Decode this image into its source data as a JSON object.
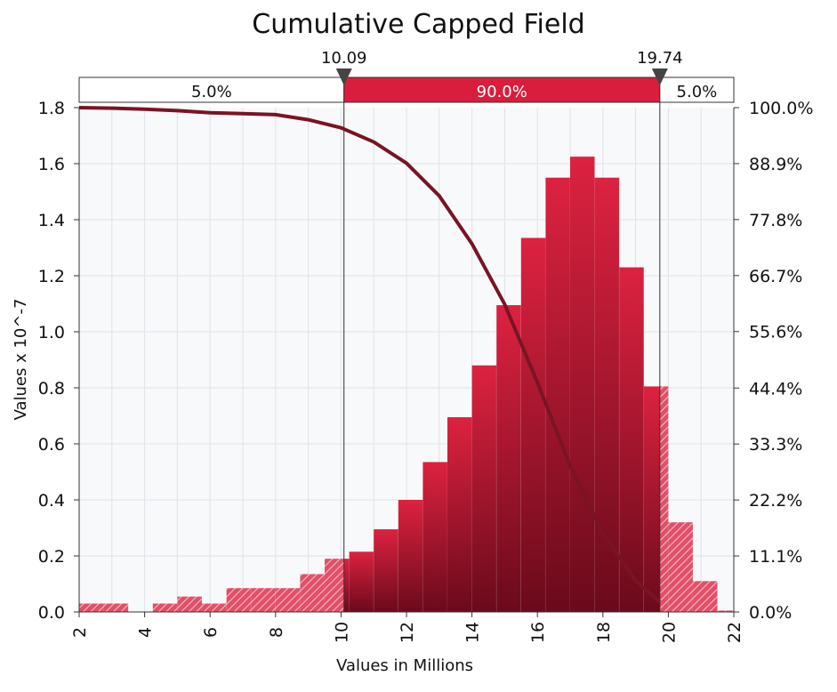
{
  "chart_data": {
    "type": "bar",
    "title": "Cumulative Capped Field",
    "xlabel": "Values in Millions",
    "ylabel": "Values x 10^-7",
    "xlim": [
      2,
      22
    ],
    "ylim": [
      0,
      1.8
    ],
    "y2lim": [
      0,
      100
    ],
    "x_ticks": [
      "2",
      "4",
      "6",
      "8",
      "10",
      "12",
      "14",
      "16",
      "18",
      "20",
      "22"
    ],
    "y_ticks": [
      "0.0",
      "0.2",
      "0.4",
      "0.6",
      "0.8",
      "1.0",
      "1.2",
      "1.4",
      "1.6",
      "1.8"
    ],
    "y2_ticks": [
      "0.0%",
      "11.1%",
      "22.2%",
      "33.3%",
      "44.4%",
      "55.6%",
      "66.7%",
      "77.8%",
      "88.9%",
      "100.0%"
    ],
    "grid": true,
    "bins": [
      {
        "x0": 2.0,
        "x1": 2.75,
        "value": 0.03
      },
      {
        "x0": 2.75,
        "x1": 3.5,
        "value": 0.03
      },
      {
        "x0": 3.5,
        "x1": 4.25,
        "value": 0.0
      },
      {
        "x0": 4.25,
        "x1": 5.0,
        "value": 0.03
      },
      {
        "x0": 5.0,
        "x1": 5.75,
        "value": 0.055
      },
      {
        "x0": 5.75,
        "x1": 6.5,
        "value": 0.03
      },
      {
        "x0": 6.5,
        "x1": 7.25,
        "value": 0.085
      },
      {
        "x0": 7.25,
        "x1": 8.0,
        "value": 0.085
      },
      {
        "x0": 8.0,
        "x1": 8.75,
        "value": 0.085
      },
      {
        "x0": 8.75,
        "x1": 9.5,
        "value": 0.135
      },
      {
        "x0": 9.5,
        "x1": 10.25,
        "value": 0.19
      },
      {
        "x0": 10.25,
        "x1": 11.0,
        "value": 0.215
      },
      {
        "x0": 11.0,
        "x1": 11.75,
        "value": 0.295
      },
      {
        "x0": 11.75,
        "x1": 12.5,
        "value": 0.4
      },
      {
        "x0": 12.5,
        "x1": 13.25,
        "value": 0.535
      },
      {
        "x0": 13.25,
        "x1": 14.0,
        "value": 0.695
      },
      {
        "x0": 14.0,
        "x1": 14.75,
        "value": 0.88
      },
      {
        "x0": 14.75,
        "x1": 15.5,
        "value": 1.095
      },
      {
        "x0": 15.5,
        "x1": 16.25,
        "value": 1.335
      },
      {
        "x0": 16.25,
        "x1": 17.0,
        "value": 1.55
      },
      {
        "x0": 17.0,
        "x1": 17.75,
        "value": 1.625
      },
      {
        "x0": 17.75,
        "x1": 18.5,
        "value": 1.55
      },
      {
        "x0": 18.5,
        "x1": 19.25,
        "value": 1.23
      },
      {
        "x0": 19.25,
        "x1": 20.0,
        "value": 0.805
      },
      {
        "x0": 20.0,
        "x1": 20.75,
        "value": 0.32
      },
      {
        "x0": 20.75,
        "x1": 21.5,
        "value": 0.11
      },
      {
        "x0": 21.5,
        "x1": 22.0,
        "value": 0.005
      }
    ],
    "cumulative_curve": {
      "x": [
        2,
        3,
        4,
        5,
        6,
        7,
        8,
        9,
        10,
        11,
        12,
        13,
        14,
        15,
        16,
        17,
        18,
        19,
        19.74
      ],
      "y_percent": [
        100.0,
        99.9,
        99.7,
        99.4,
        99.0,
        98.8,
        98.6,
        97.6,
        96.0,
        93.2,
        89.0,
        82.5,
        73.0,
        61.0,
        45.5,
        29.0,
        15.5,
        6.2,
        2.0
      ]
    },
    "markers": [
      {
        "value": "10.09",
        "x": 10.09
      },
      {
        "value": "19.74",
        "x": 19.74
      }
    ],
    "percent_bar": {
      "left": "5.0%",
      "middle": "90.0%",
      "right": "5.0%"
    },
    "colors": {
      "bar_light": "#d81e3c",
      "bar_dark": "#6b0a1c",
      "curve": "#7a1424",
      "grid": "#dde3ea",
      "plot_bg": "#f8f9fa"
    }
  }
}
